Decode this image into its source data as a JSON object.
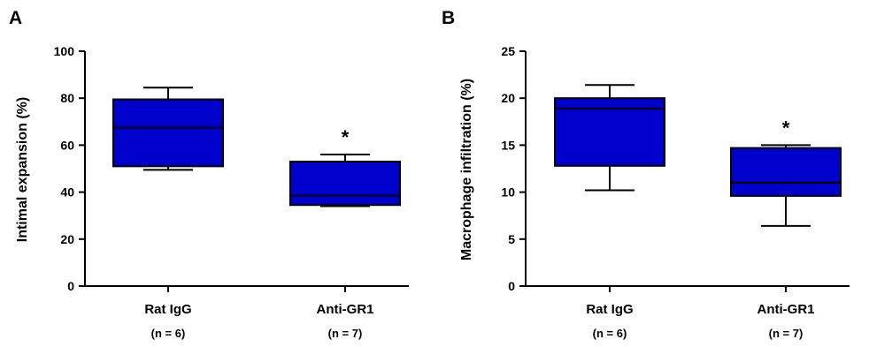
{
  "chart_data": [
    {
      "type": "box",
      "panel_label": "A",
      "ylabel": "Intimal expansion (%)",
      "ylim": [
        0,
        100
      ],
      "yticks": [
        "0",
        "20",
        "40",
        "60",
        "80",
        "100"
      ],
      "grid": false,
      "color": "#0000CC",
      "categories": [
        {
          "label": "Rat IgG",
          "n_label": "(n = 6)",
          "min": 49.5,
          "q1": 51,
          "median": 67.5,
          "q3": 79.5,
          "max": 84.5,
          "annotation": ""
        },
        {
          "label": "Anti-GR1",
          "n_label": "(n = 7)",
          "min": 34,
          "q1": 34.5,
          "median": 38.5,
          "q3": 53,
          "max": 56,
          "annotation": "*"
        }
      ]
    },
    {
      "type": "box",
      "panel_label": "B",
      "ylabel": "Macrophage infiltration (%)",
      "ylim": [
        0,
        25
      ],
      "yticks": [
        "0",
        "5",
        "10",
        "15",
        "20",
        "25"
      ],
      "grid": false,
      "color": "#0000CC",
      "categories": [
        {
          "label": "Rat IgG",
          "n_label": "(n = 6)",
          "min": 10.2,
          "q1": 12.8,
          "median": 18.9,
          "q3": 20,
          "max": 21.4,
          "annotation": ""
        },
        {
          "label": "Anti-GR1",
          "n_label": "(n = 7)",
          "min": 6.4,
          "q1": 9.6,
          "median": 11,
          "q3": 14.7,
          "max": 15,
          "annotation": "*"
        }
      ]
    }
  ]
}
